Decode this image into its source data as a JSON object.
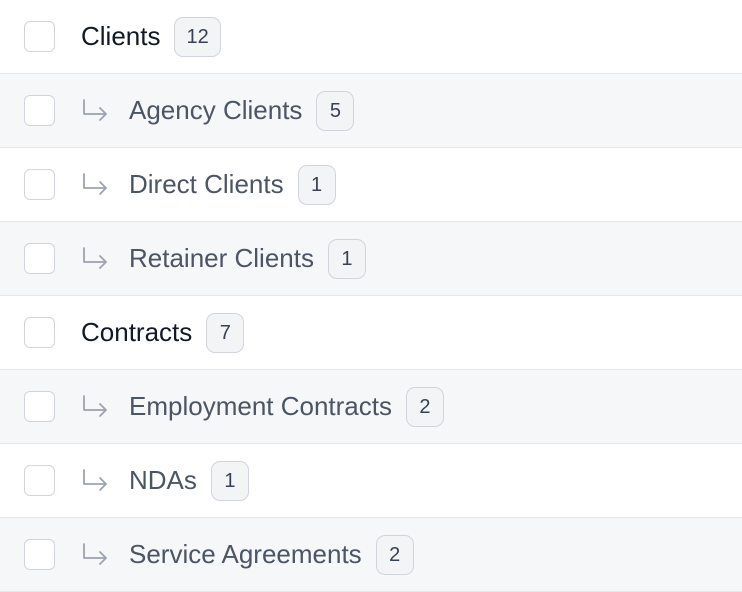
{
  "groups": [
    {
      "label": "Clients",
      "count": 12,
      "children": [
        {
          "label": "Agency Clients",
          "count": 5
        },
        {
          "label": "Direct Clients",
          "count": 1
        },
        {
          "label": "Retainer Clients",
          "count": 1
        }
      ]
    },
    {
      "label": "Contracts",
      "count": 7,
      "children": [
        {
          "label": "Employment Contracts",
          "count": 2
        },
        {
          "label": "NDAs",
          "count": 1
        },
        {
          "label": "Service Agreements",
          "count": 2
        }
      ]
    }
  ]
}
